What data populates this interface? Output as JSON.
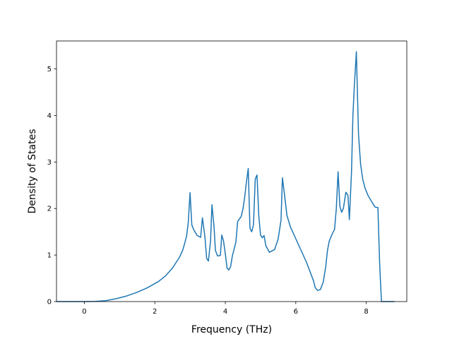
{
  "chart_data": {
    "type": "line",
    "title": "",
    "xlabel": "Frequency (THz)",
    "ylabel": "Density of States",
    "xlim": [
      -0.79,
      9.15
    ],
    "ylim": [
      0,
      5.6
    ],
    "xticks": [
      0,
      2,
      4,
      6,
      8
    ],
    "yticks": [
      0,
      1,
      2,
      3,
      4,
      5
    ],
    "grid": false,
    "legend": "none",
    "series": [
      {
        "color": "#1f77b4",
        "points": [
          [
            -0.79,
            0.0
          ],
          [
            0.0,
            0.0
          ],
          [
            0.3,
            0.005
          ],
          [
            0.6,
            0.02
          ],
          [
            0.9,
            0.06
          ],
          [
            1.2,
            0.12
          ],
          [
            1.5,
            0.2
          ],
          [
            1.8,
            0.3
          ],
          [
            2.1,
            0.43
          ],
          [
            2.3,
            0.55
          ],
          [
            2.5,
            0.72
          ],
          [
            2.7,
            0.95
          ],
          [
            2.8,
            1.12
          ],
          [
            2.9,
            1.4
          ],
          [
            2.95,
            1.7
          ],
          [
            3.0,
            2.34
          ],
          [
            3.05,
            1.65
          ],
          [
            3.1,
            1.55
          ],
          [
            3.2,
            1.42
          ],
          [
            3.3,
            1.38
          ],
          [
            3.35,
            1.8
          ],
          [
            3.42,
            1.4
          ],
          [
            3.47,
            0.93
          ],
          [
            3.52,
            0.87
          ],
          [
            3.58,
            1.3
          ],
          [
            3.62,
            2.08
          ],
          [
            3.68,
            1.6
          ],
          [
            3.72,
            1.1
          ],
          [
            3.78,
            0.98
          ],
          [
            3.86,
            0.99
          ],
          [
            3.9,
            1.43
          ],
          [
            3.95,
            1.3
          ],
          [
            4.0,
            1.03
          ],
          [
            4.05,
            0.72
          ],
          [
            4.1,
            0.68
          ],
          [
            4.15,
            0.75
          ],
          [
            4.2,
            0.98
          ],
          [
            4.3,
            1.28
          ],
          [
            4.35,
            1.72
          ],
          [
            4.45,
            1.83
          ],
          [
            4.5,
            1.99
          ],
          [
            4.55,
            2.25
          ],
          [
            4.6,
            2.58
          ],
          [
            4.65,
            2.86
          ],
          [
            4.7,
            1.58
          ],
          [
            4.75,
            1.5
          ],
          [
            4.8,
            1.65
          ],
          [
            4.85,
            2.63
          ],
          [
            4.9,
            2.72
          ],
          [
            4.95,
            1.85
          ],
          [
            5.0,
            1.43
          ],
          [
            5.05,
            1.37
          ],
          [
            5.1,
            1.42
          ],
          [
            5.15,
            1.2
          ],
          [
            5.25,
            1.06
          ],
          [
            5.4,
            1.12
          ],
          [
            5.5,
            1.35
          ],
          [
            5.58,
            1.75
          ],
          [
            5.62,
            2.66
          ],
          [
            5.68,
            2.3
          ],
          [
            5.75,
            1.85
          ],
          [
            5.85,
            1.6
          ],
          [
            6.0,
            1.35
          ],
          [
            6.15,
            1.1
          ],
          [
            6.3,
            0.85
          ],
          [
            6.45,
            0.55
          ],
          [
            6.5,
            0.45
          ],
          [
            6.55,
            0.3
          ],
          [
            6.62,
            0.24
          ],
          [
            6.7,
            0.26
          ],
          [
            6.78,
            0.42
          ],
          [
            6.85,
            0.75
          ],
          [
            6.9,
            1.1
          ],
          [
            6.95,
            1.3
          ],
          [
            7.05,
            1.48
          ],
          [
            7.1,
            1.55
          ],
          [
            7.15,
            2.0
          ],
          [
            7.2,
            2.79
          ],
          [
            7.25,
            2.05
          ],
          [
            7.3,
            1.92
          ],
          [
            7.35,
            2.0
          ],
          [
            7.42,
            2.35
          ],
          [
            7.48,
            2.28
          ],
          [
            7.52,
            1.76
          ],
          [
            7.58,
            2.78
          ],
          [
            7.62,
            4.0
          ],
          [
            7.66,
            4.6
          ],
          [
            7.72,
            5.37
          ],
          [
            7.78,
            3.6
          ],
          [
            7.84,
            2.95
          ],
          [
            7.9,
            2.63
          ],
          [
            7.96,
            2.45
          ],
          [
            8.05,
            2.28
          ],
          [
            8.15,
            2.15
          ],
          [
            8.25,
            2.03
          ],
          [
            8.33,
            2.02
          ],
          [
            8.38,
            0.8
          ],
          [
            8.43,
            0.0
          ],
          [
            8.8,
            0.0
          ]
        ]
      }
    ]
  }
}
